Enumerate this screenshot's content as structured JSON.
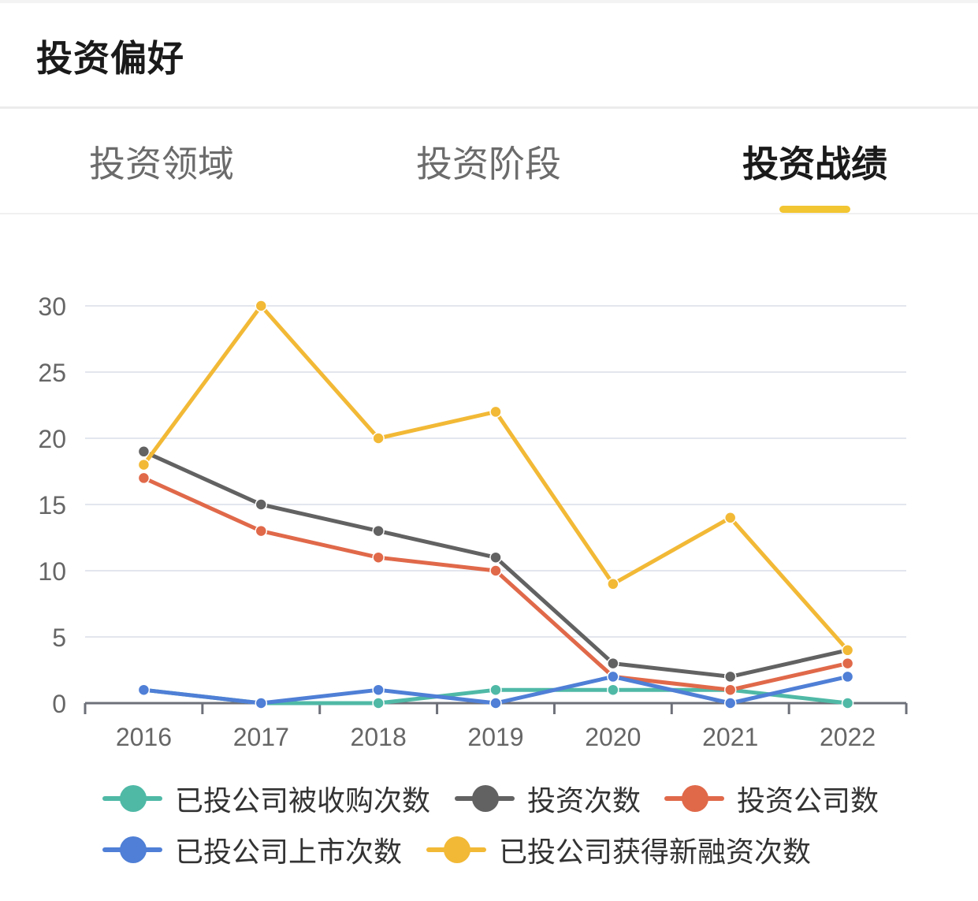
{
  "header": {
    "title": "投资偏好"
  },
  "tabs": [
    {
      "label": "投资领域",
      "active": false
    },
    {
      "label": "投资阶段",
      "active": false
    },
    {
      "label": "投资战绩",
      "active": true
    }
  ],
  "colors": {
    "accent": "#f2c532"
  },
  "chart_data": {
    "type": "line",
    "categories": [
      "2016",
      "2017",
      "2018",
      "2019",
      "2020",
      "2021",
      "2022"
    ],
    "ylim": [
      0,
      30
    ],
    "yticks": [
      0,
      5,
      10,
      15,
      20,
      25,
      30
    ],
    "grid": true,
    "legend_position": "bottom",
    "series": [
      {
        "name": "已投公司被收购次数",
        "color": "#4fb9a6",
        "values": [
          1,
          0,
          0,
          1,
          1,
          1,
          0
        ]
      },
      {
        "name": "投资次数",
        "color": "#626262",
        "values": [
          19,
          15,
          13,
          11,
          3,
          2,
          4
        ]
      },
      {
        "name": "投资公司数",
        "color": "#e0694a",
        "values": [
          17,
          13,
          11,
          10,
          2,
          1,
          3
        ]
      },
      {
        "name": "已投公司上市次数",
        "color": "#4f7fd6",
        "values": [
          1,
          0,
          1,
          0,
          2,
          0,
          2
        ]
      },
      {
        "name": "已投公司获得新融资次数",
        "color": "#f2b936",
        "values": [
          18,
          30,
          20,
          22,
          9,
          14,
          4
        ]
      }
    ]
  }
}
